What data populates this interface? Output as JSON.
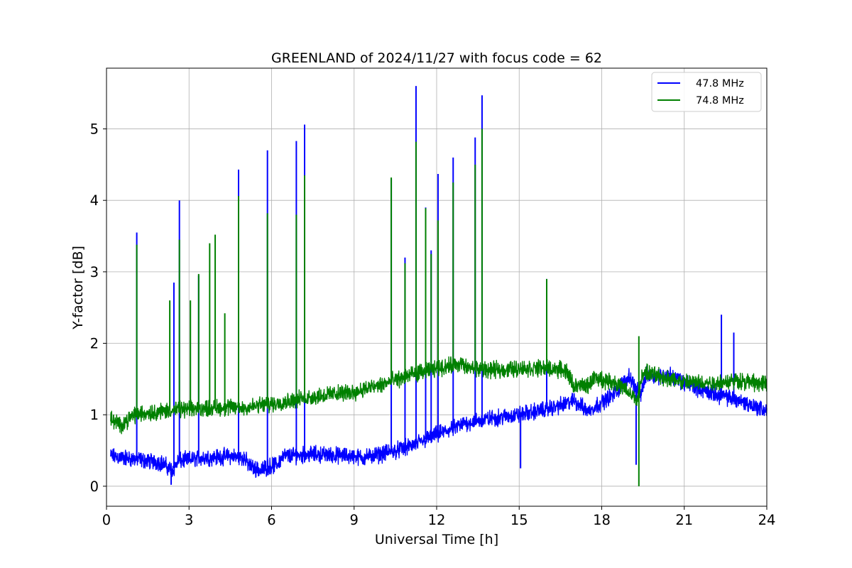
{
  "chart_data": {
    "type": "line",
    "title": "GREENLAND of 2024/11/27 with focus code = 62",
    "xlabel": "Universal Time [h]",
    "ylabel": "Y-factor [dB]",
    "xlim": [
      0,
      24
    ],
    "ylim": [
      -0.28,
      5.85
    ],
    "xticks": [
      0,
      3,
      6,
      9,
      12,
      15,
      18,
      21,
      24
    ],
    "yticks": [
      0,
      1,
      2,
      3,
      4,
      5
    ],
    "grid": true,
    "legend_position": "top-right",
    "series": [
      {
        "name": "47.8 MHz",
        "color": "#0000ff",
        "baseline": [
          [
            0.15,
            0.42
          ],
          [
            1.0,
            0.38
          ],
          [
            2.0,
            0.33
          ],
          [
            2.4,
            0.22
          ],
          [
            2.6,
            0.35
          ],
          [
            3.5,
            0.4
          ],
          [
            4.5,
            0.42
          ],
          [
            5.0,
            0.4
          ],
          [
            5.2,
            0.28
          ],
          [
            5.6,
            0.22
          ],
          [
            5.9,
            0.28
          ],
          [
            6.2,
            0.3
          ],
          [
            6.4,
            0.42
          ],
          [
            7.5,
            0.45
          ],
          [
            9.0,
            0.42
          ],
          [
            9.3,
            0.4
          ],
          [
            10.0,
            0.45
          ],
          [
            11.0,
            0.55
          ],
          [
            12.0,
            0.72
          ],
          [
            12.9,
            0.85
          ],
          [
            13.0,
            0.88
          ],
          [
            14.0,
            0.95
          ],
          [
            15.0,
            1.0
          ],
          [
            16.0,
            1.08
          ],
          [
            16.7,
            1.15
          ],
          [
            17.0,
            1.2
          ],
          [
            17.5,
            1.05
          ],
          [
            18.5,
            1.3
          ],
          [
            19.0,
            1.55
          ],
          [
            19.4,
            1.25
          ],
          [
            19.6,
            1.55
          ],
          [
            20.5,
            1.55
          ],
          [
            21.0,
            1.45
          ],
          [
            22.0,
            1.3
          ],
          [
            23.0,
            1.2
          ],
          [
            24.0,
            1.05
          ]
        ],
        "spikes": [
          [
            1.1,
            3.55
          ],
          [
            2.45,
            2.85
          ],
          [
            2.65,
            4.0
          ],
          [
            3.35,
            2.95
          ],
          [
            4.8,
            4.43
          ],
          [
            5.85,
            4.7
          ],
          [
            6.9,
            4.83
          ],
          [
            7.2,
            5.06
          ],
          [
            10.35,
            4.3
          ],
          [
            10.85,
            3.2
          ],
          [
            11.25,
            5.6
          ],
          [
            11.6,
            3.9
          ],
          [
            11.8,
            3.3
          ],
          [
            12.05,
            4.37
          ],
          [
            12.6,
            4.6
          ],
          [
            13.4,
            4.88
          ],
          [
            13.65,
            5.47
          ],
          [
            16.0,
            2.9
          ],
          [
            22.35,
            2.4
          ],
          [
            22.8,
            2.15
          ]
        ],
        "dips": [
          [
            2.35,
            0.02
          ],
          [
            15.05,
            0.25
          ],
          [
            19.25,
            0.3
          ]
        ]
      },
      {
        "name": "74.8 MHz",
        "color": "#008000",
        "baseline": [
          [
            0.15,
            0.95
          ],
          [
            0.5,
            0.85
          ],
          [
            1.0,
            1.0
          ],
          [
            2.0,
            1.05
          ],
          [
            3.0,
            1.08
          ],
          [
            4.0,
            1.1
          ],
          [
            5.0,
            1.1
          ],
          [
            6.0,
            1.15
          ],
          [
            7.0,
            1.22
          ],
          [
            8.0,
            1.28
          ],
          [
            9.0,
            1.32
          ],
          [
            9.3,
            1.35
          ],
          [
            10.0,
            1.42
          ],
          [
            11.0,
            1.55
          ],
          [
            12.0,
            1.65
          ],
          [
            12.9,
            1.72
          ],
          [
            13.0,
            1.66
          ],
          [
            14.0,
            1.62
          ],
          [
            15.0,
            1.65
          ],
          [
            16.0,
            1.65
          ],
          [
            16.7,
            1.62
          ],
          [
            17.0,
            1.4
          ],
          [
            17.5,
            1.4
          ],
          [
            17.7,
            1.52
          ],
          [
            18.5,
            1.45
          ],
          [
            19.0,
            1.3
          ],
          [
            19.3,
            1.2
          ],
          [
            19.5,
            1.6
          ],
          [
            20.0,
            1.55
          ],
          [
            21.0,
            1.45
          ],
          [
            22.0,
            1.45
          ],
          [
            23.0,
            1.48
          ],
          [
            24.0,
            1.42
          ]
        ],
        "spikes": [
          [
            1.1,
            3.38
          ],
          [
            2.3,
            2.6
          ],
          [
            2.65,
            3.45
          ],
          [
            3.05,
            2.6
          ],
          [
            3.35,
            2.97
          ],
          [
            3.75,
            3.4
          ],
          [
            3.95,
            3.52
          ],
          [
            4.3,
            2.42
          ],
          [
            4.8,
            4.06
          ],
          [
            5.85,
            3.82
          ],
          [
            6.9,
            3.8
          ],
          [
            7.2,
            4.35
          ],
          [
            10.35,
            4.32
          ],
          [
            10.85,
            3.12
          ],
          [
            11.25,
            4.82
          ],
          [
            11.6,
            3.89
          ],
          [
            11.8,
            3.25
          ],
          [
            12.05,
            3.72
          ],
          [
            12.6,
            4.25
          ],
          [
            13.4,
            4.5
          ],
          [
            13.65,
            5.0
          ],
          [
            16.0,
            2.9
          ],
          [
            19.35,
            2.1
          ]
        ],
        "dips": [
          [
            19.35,
            0.0
          ]
        ]
      }
    ]
  }
}
